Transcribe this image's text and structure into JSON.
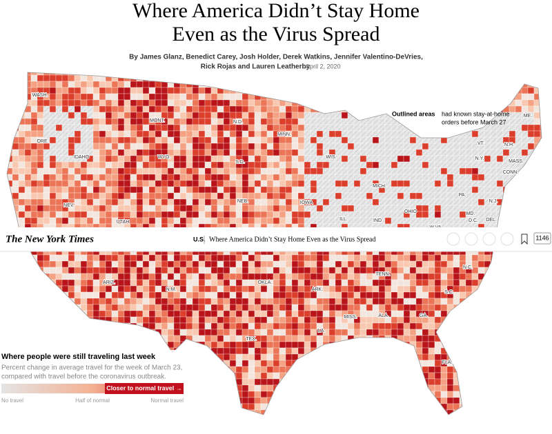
{
  "header": {
    "title_lines": [
      "Where America Didn’t Stay Home",
      "Even as the Virus Spread"
    ],
    "byline_lines": [
      "By James Glanz, Benedict Carey, Josh Holder, Derek Watkins, Jennifer Valentino-DeVries,",
      "Rick Rojas and Lauren Leatherby"
    ],
    "date": "April 2, 2020"
  },
  "nav": {
    "brand": "The New York Times",
    "section": "U.S.",
    "headline": "Where America Didn’t Stay Home Even as the Virus Spread",
    "comments": "1146"
  },
  "annotation": {
    "bold": "Outlined areas",
    "rest_lines": [
      "had known stay-at-home",
      "orders before March 27"
    ]
  },
  "map": {
    "labels": [
      "WASH.",
      "ORE.",
      "IDAHO",
      "MONT.",
      "N.D.",
      "MINN.",
      "S.D.",
      "WYO.",
      "WIS.",
      "MICH.",
      "N.Y.",
      "VT.",
      "N.H.",
      "ME.",
      "MASS.",
      "CONN.",
      "PA.",
      "N.J.",
      "NEB.",
      "IOWA",
      "NEV.",
      "UTAH",
      "ILL.",
      "IND.",
      "OHIO",
      "MD.",
      "D.C.",
      "DEL.",
      "W.VA.",
      "ARIZ.",
      "N.M.",
      "OKLA.",
      "ARK.",
      "TENN.",
      "N.C.",
      "S.C.",
      "MISS.",
      "ALA.",
      "GA.",
      "LA.",
      "TEX.",
      "FLA."
    ]
  },
  "legend": {
    "title": "Where people were still traveling last week",
    "description_lines": [
      "Percent change in average travel for the week of March 23,",
      "compared with travel before the coronavirus outbreak."
    ],
    "badge": "Closer to normal travel →",
    "scale_labels": [
      "No travel",
      "Half of normal",
      "Normal travel"
    ]
  }
}
